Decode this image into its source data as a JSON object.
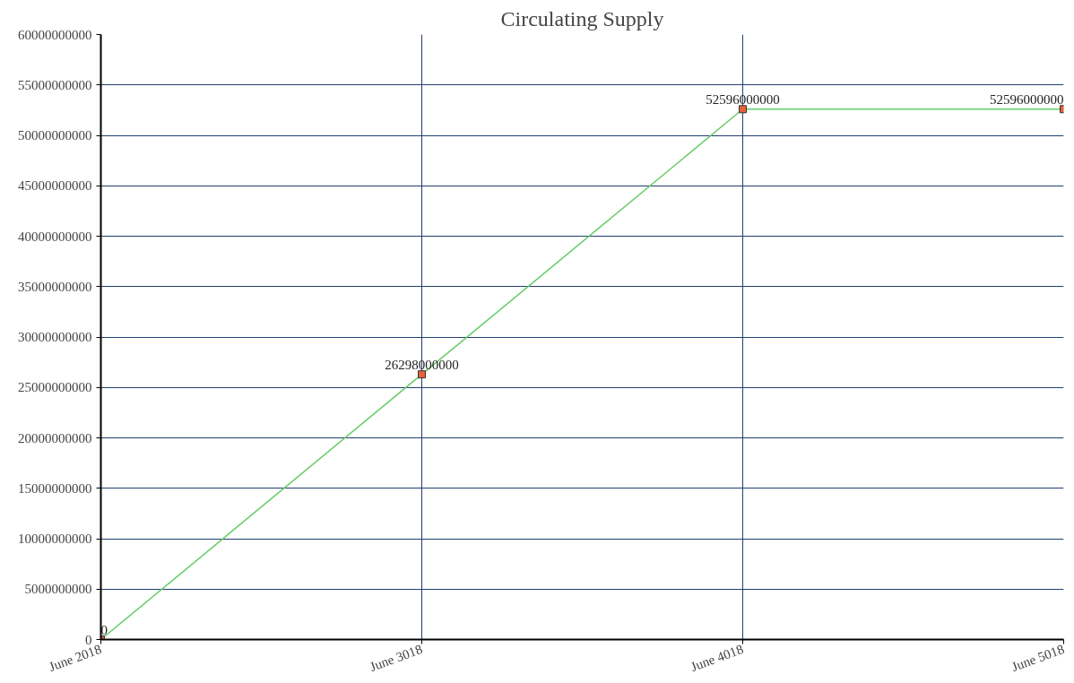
{
  "chart_data": {
    "type": "line",
    "title": "Circulating Supply",
    "categories": [
      "June 2018",
      "June 3018",
      "June 4018",
      "June 5018"
    ],
    "series": [
      {
        "color": "#66cc66",
        "colors": [
          "#e8603c",
          "#e8603c",
          "#e8603c",
          "#e8603c"
        ],
        "values": [
          0,
          26298000000,
          52596000000,
          52596000000
        ]
      }
    ],
    "ylim": [
      0,
      60000000000
    ],
    "yticks": [
      0,
      5000000000,
      10000000000,
      15000000000,
      20000000000,
      25000000000,
      30000000000,
      35000000000,
      40000000000,
      45000000000,
      50000000000,
      55000000000,
      60000000000
    ],
    "grid": true,
    "marker": "square",
    "line_style": "solid",
    "data_labels": true
  }
}
